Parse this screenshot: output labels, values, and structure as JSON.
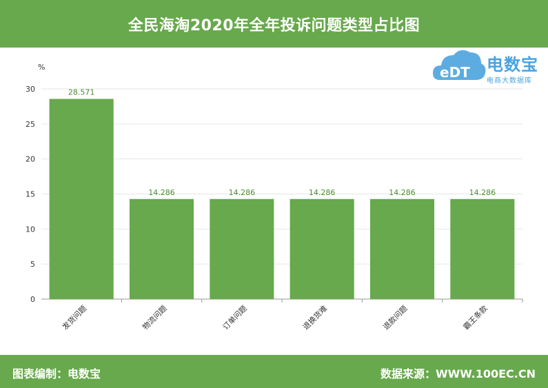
{
  "header": {
    "title": "全民海淘2020年全年投诉问题类型占比图"
  },
  "logo": {
    "brand": "电数宝",
    "subtitle": "电商大数据库",
    "mark_text": "eDT"
  },
  "footer": {
    "left": "图表编制：电数宝",
    "right": "数据来源：WWW.100EC.CN"
  },
  "colors": {
    "bar": "#67a94c",
    "header_bg": "#67a94c",
    "data_label": "#4d8a34",
    "logo": "#4aa3df"
  },
  "chart_data": {
    "type": "bar",
    "title": "全民海淘2020年全年投诉问题类型占比图",
    "ylabel": "%",
    "xlabel": "",
    "ylim": [
      0,
      30
    ],
    "yticks": [
      0,
      5,
      10,
      15,
      20,
      25,
      30
    ],
    "grid": true,
    "categories": [
      "发货问题",
      "物流问题",
      "订单问题",
      "退换货难",
      "退款问题",
      "霸王条款"
    ],
    "values": [
      28.571,
      14.286,
      14.286,
      14.286,
      14.286,
      14.286
    ],
    "data_labels": [
      "28.571",
      "14.286",
      "14.286",
      "14.286",
      "14.286",
      "14.286"
    ]
  }
}
